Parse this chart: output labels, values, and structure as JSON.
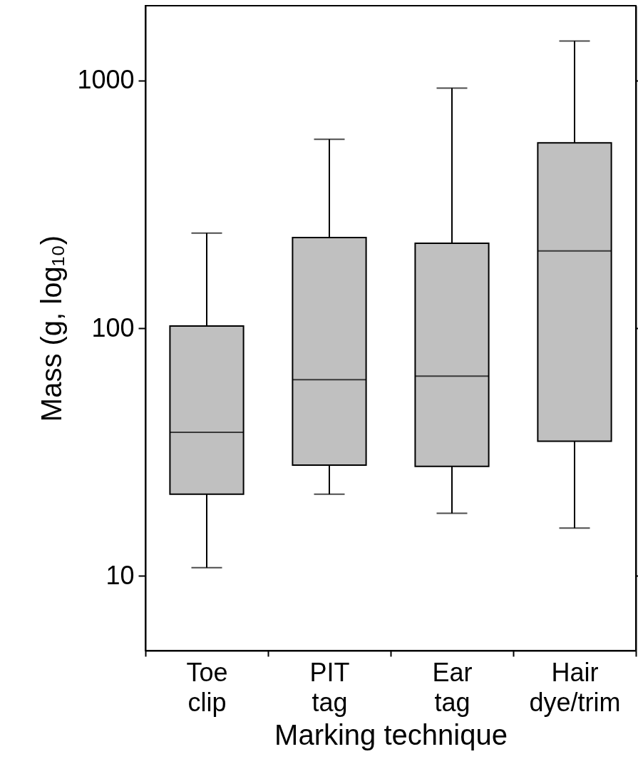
{
  "chart_data": {
    "type": "box",
    "xlabel": "Marking technique",
    "ylabel": "Mass (g, log₁₀)",
    "categories": [
      "Toe clip",
      "PIT tag",
      "Ear tag",
      "Hair dye/trim"
    ],
    "boxes": [
      {
        "low": 10.8,
        "q1": 21.4,
        "median": 38,
        "q3": 102,
        "high": 242
      },
      {
        "low": 21.4,
        "q1": 28,
        "median": 62,
        "q3": 232,
        "high": 578
      },
      {
        "low": 17.9,
        "q1": 27.7,
        "median": 64,
        "q3": 220,
        "high": 930
      },
      {
        "low": 15.6,
        "q1": 35,
        "median": 205,
        "q3": 559,
        "high": 1440
      }
    ],
    "color": "#c0c0c0",
    "log": true,
    "grid": false,
    "ylim": [
      5,
      2000
    ],
    "yticks": [
      10,
      100,
      1000
    ]
  }
}
